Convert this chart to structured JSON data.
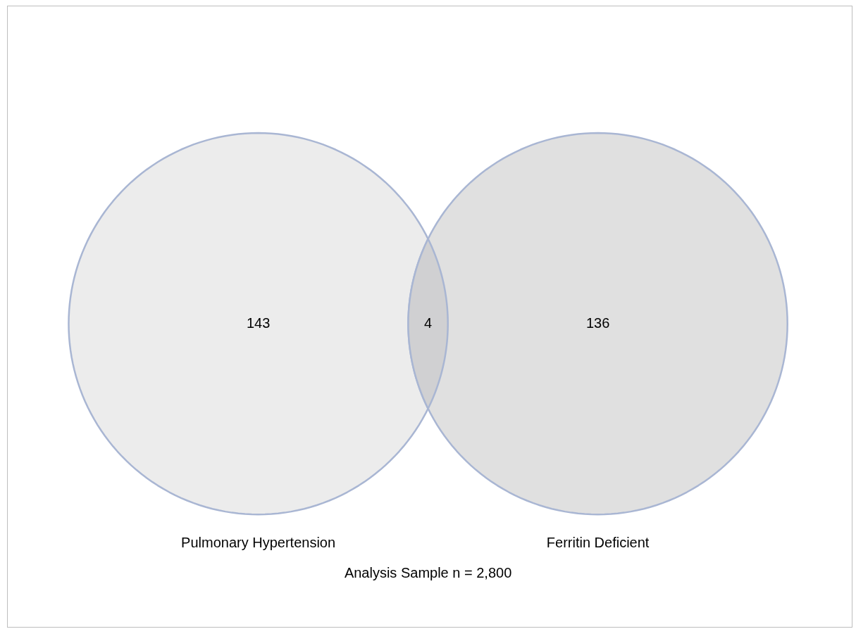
{
  "chart_data": {
    "type": "other",
    "categories": [
      "Pulmonary Hypertension",
      null,
      "Ferritin Deficient"
    ],
    "values": [
      143,
      4,
      136
    ],
    "colors": [
      "#ececec",
      "#d0d0d2",
      "#e0e0e0"
    ],
    "data_labels": true,
    "annotations": [
      "Analysis Sample n = 2,800"
    ]
  }
}
